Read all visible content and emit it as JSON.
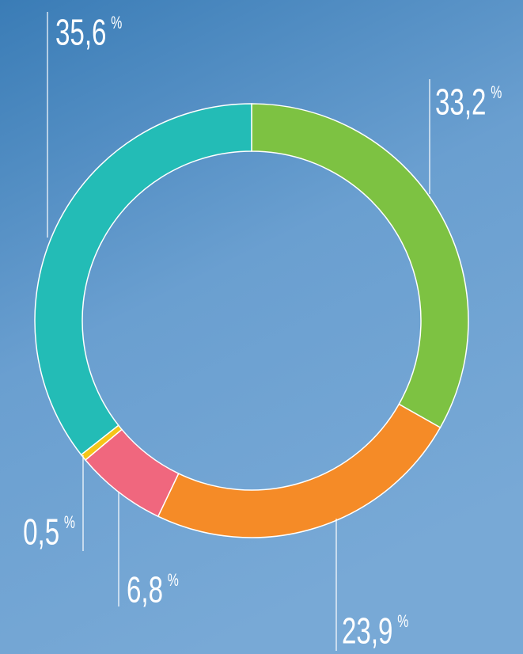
{
  "chart_data": {
    "type": "donut",
    "categories": [
      null,
      null,
      null,
      null,
      null
    ],
    "values": [
      33.2,
      23.9,
      6.8,
      0.5,
      35.6
    ],
    "value_labels": [
      "33,2",
      "23,9",
      "6,8",
      "0,5",
      "35,6"
    ],
    "unit": "%",
    "colors": [
      "#7dc242",
      "#f58b27",
      "#f0677e",
      "#f5c518",
      "#23bcb6"
    ]
  }
}
